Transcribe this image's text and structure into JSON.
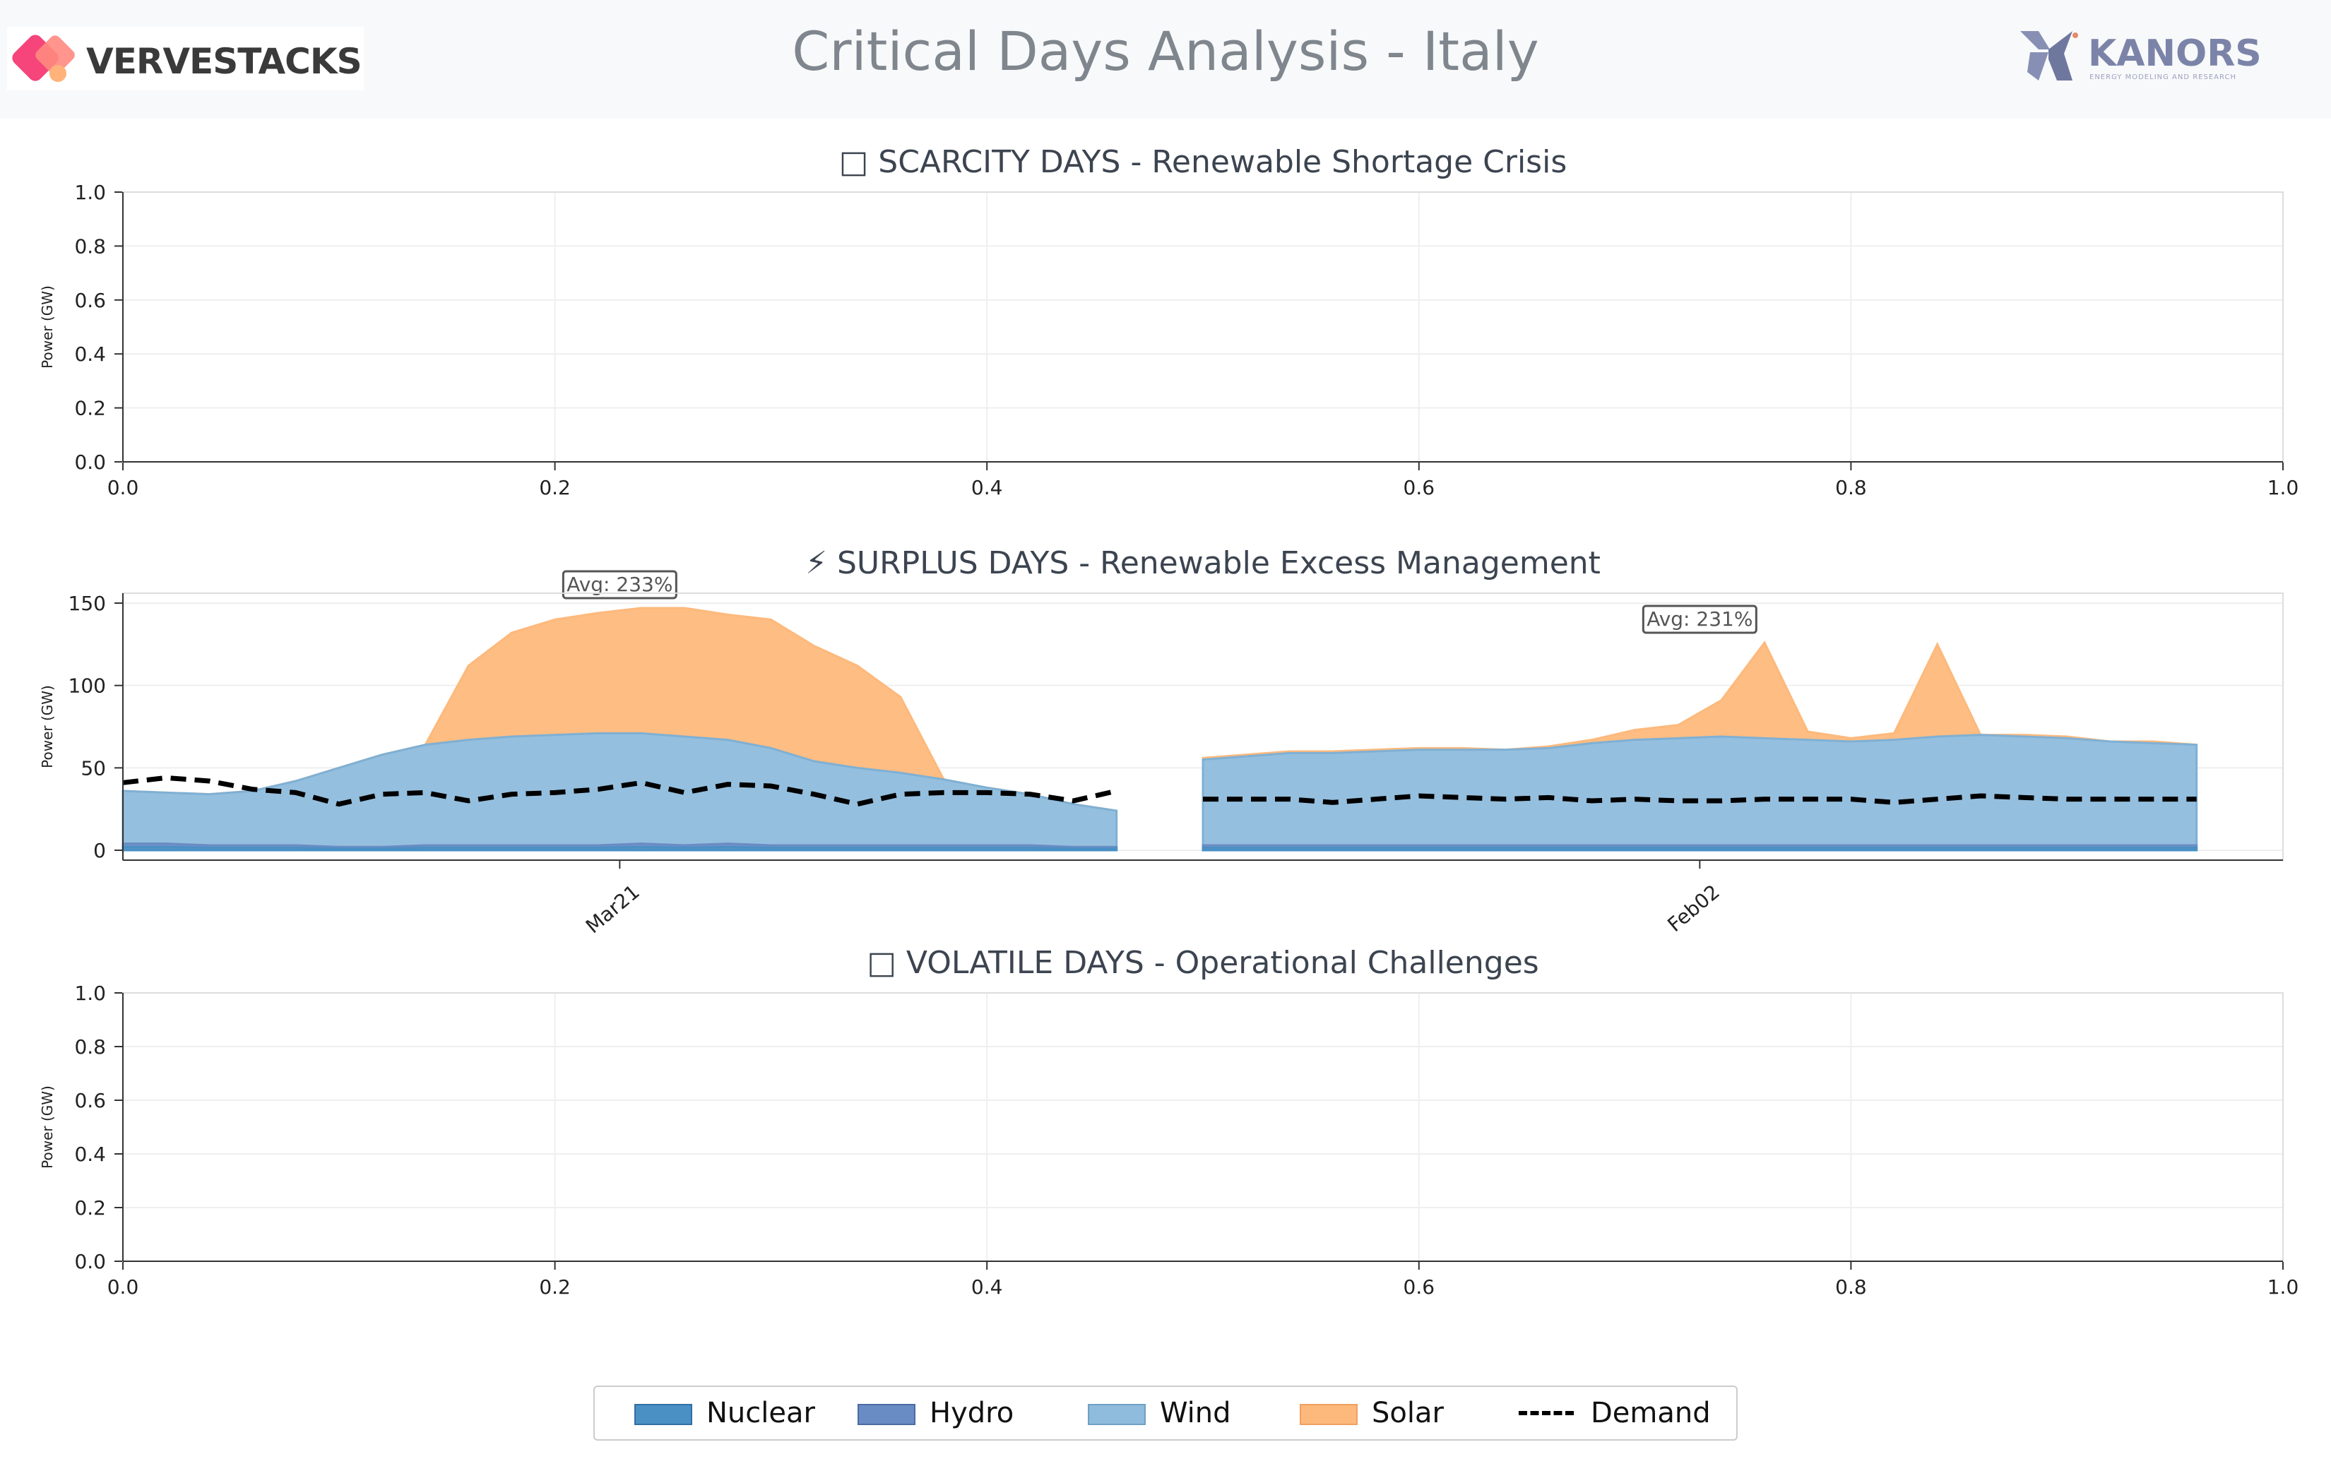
{
  "page": {
    "title": "Critical Days Analysis - Italy",
    "logo_left": {
      "text": "VERVESTACKS",
      "icon": "vervestacks-diamond-icon"
    },
    "logo_right": {
      "text": "KANORS",
      "subtitle": "ENERGY MODELING AND RESEARCH",
      "icon": "kanors-k-icon"
    }
  },
  "colors": {
    "nuclear": "#4a90c4",
    "hydro": "#6a8cc4",
    "wind": "#8fbcdc",
    "solar": "#fdb97c",
    "demand": "#000000"
  },
  "legend": [
    {
      "key": "nuclear",
      "label": "Nuclear"
    },
    {
      "key": "hydro",
      "label": "Hydro"
    },
    {
      "key": "wind",
      "label": "Wind"
    },
    {
      "key": "solar",
      "label": "Solar"
    },
    {
      "key": "demand",
      "label": "Demand"
    }
  ],
  "chart_data": [
    {
      "type": "line",
      "title": "□ SCARCITY DAYS - Renewable Shortage Crisis",
      "ylabel": "Power (GW)",
      "xlim": [
        0,
        1
      ],
      "ylim": [
        0,
        1
      ],
      "xticks": [
        "0.0",
        "0.2",
        "0.4",
        "0.6",
        "0.8",
        "1.0"
      ],
      "yticks": [
        "0.0",
        "0.2",
        "0.4",
        "0.6",
        "0.8",
        "1.0"
      ],
      "grid": true,
      "series": []
    },
    {
      "type": "area",
      "title": "⚡ SURPLUS DAYS - Renewable Excess Management",
      "ylabel": "Power (GW)",
      "ylim": [
        -6,
        156
      ],
      "yticks": [
        "0",
        "50",
        "100",
        "150"
      ],
      "grid": true,
      "xlim": [
        0,
        1
      ],
      "days": [
        {
          "label": "Mar21",
          "annotation": "Avg: 233%",
          "hours": [
            0,
            1,
            2,
            3,
            4,
            5,
            6,
            7,
            8,
            9,
            10,
            11,
            12,
            13,
            14,
            15,
            16,
            17,
            18,
            19,
            20,
            21,
            22,
            23
          ],
          "base": [
            4,
            4,
            3,
            3,
            3,
            2,
            2,
            3,
            3,
            3,
            3,
            3,
            4,
            3,
            4,
            3,
            3,
            3,
            3,
            3,
            3,
            3,
            2,
            2
          ],
          "wind_top": [
            36,
            35,
            34,
            36,
            42,
            50,
            58,
            64,
            67,
            69,
            70,
            71,
            71,
            69,
            67,
            62,
            54,
            50,
            47,
            43,
            38,
            34,
            28,
            24
          ],
          "solar_top": [
            36,
            35,
            34,
            36,
            42,
            50,
            58,
            64,
            112,
            132,
            140,
            144,
            147,
            147,
            143,
            140,
            124,
            112,
            93,
            43,
            38,
            34,
            28,
            24
          ],
          "demand": [
            41,
            44,
            42,
            37,
            35,
            28,
            34,
            35,
            30,
            34,
            35,
            37,
            41,
            35,
            40,
            39,
            34,
            28,
            34,
            35,
            35,
            34,
            30,
            36
          ]
        },
        {
          "label": "Feb02",
          "annotation": "Avg: 231%",
          "hours": [
            0,
            1,
            2,
            3,
            4,
            5,
            6,
            7,
            8,
            9,
            10,
            11,
            12,
            13,
            14,
            15,
            16,
            17,
            18,
            19,
            20,
            21,
            22,
            23
          ],
          "base": [
            3,
            3,
            3,
            3,
            3,
            3,
            3,
            3,
            3,
            3,
            3,
            3,
            3,
            3,
            3,
            3,
            3,
            3,
            3,
            3,
            3,
            3,
            3,
            3
          ],
          "wind_top": [
            55,
            57,
            59,
            59,
            60,
            61,
            61,
            61,
            62,
            65,
            67,
            68,
            69,
            68,
            67,
            66,
            67,
            69,
            70,
            69,
            68,
            66,
            65,
            64
          ],
          "solar_top": [
            56,
            58,
            60,
            60,
            61,
            62,
            62,
            61,
            63,
            67,
            73,
            76,
            91,
            126,
            72,
            68,
            71,
            125,
            70,
            70,
            69,
            66,
            66,
            64
          ],
          "demand": [
            31,
            31,
            31,
            29,
            31,
            33,
            32,
            31,
            32,
            30,
            31,
            30,
            30,
            31,
            31,
            31,
            29,
            31,
            33,
            32,
            31,
            31,
            31,
            31
          ]
        }
      ],
      "series": [
        {
          "name": "Nuclear",
          "key": "nuclear"
        },
        {
          "name": "Hydro",
          "key": "hydro"
        },
        {
          "name": "Wind",
          "key": "wind"
        },
        {
          "name": "Solar",
          "key": "solar"
        },
        {
          "name": "Demand",
          "key": "demand"
        }
      ]
    },
    {
      "type": "line",
      "title": "□ VOLATILE DAYS - Operational Challenges",
      "ylabel": "Power (GW)",
      "xlim": [
        0,
        1
      ],
      "ylim": [
        0,
        1
      ],
      "xticks": [
        "0.0",
        "0.2",
        "0.4",
        "0.6",
        "0.8",
        "1.0"
      ],
      "yticks": [
        "0.0",
        "0.2",
        "0.4",
        "0.6",
        "0.8",
        "1.0"
      ],
      "grid": true,
      "series": []
    }
  ]
}
